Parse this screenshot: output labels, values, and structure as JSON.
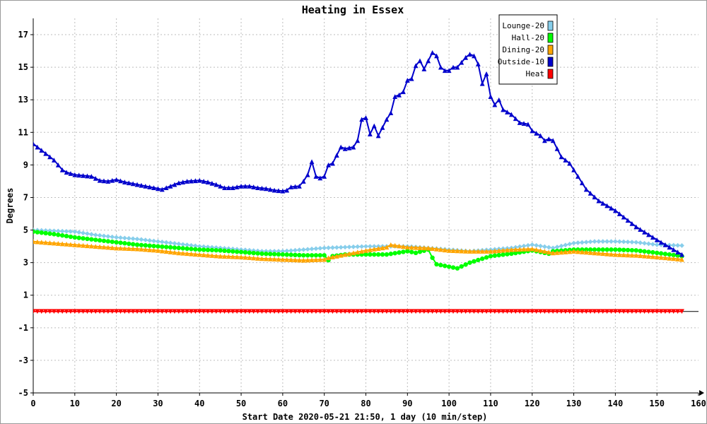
{
  "chart_data": {
    "type": "line",
    "title": "Heating in Essex",
    "xlabel": "Start Date 2020-05-21 21:50, 1 day (10 min/step)",
    "ylabel": "Degrees",
    "xlim": [
      0,
      160
    ],
    "ylim": [
      -5,
      18
    ],
    "x_ticks": [
      0,
      10,
      20,
      30,
      40,
      50,
      60,
      70,
      80,
      90,
      100,
      110,
      120,
      130,
      140,
      150,
      160
    ],
    "y_ticks": [
      -5,
      -3,
      -1,
      1,
      3,
      5,
      7,
      9,
      11,
      13,
      15,
      17
    ],
    "grid": true,
    "legend_position": "top-right",
    "series": [
      {
        "name": "Lounge-20",
        "color": "#87ceeb",
        "marker": "diamond",
        "x": [
          0,
          5,
          10,
          15,
          20,
          25,
          30,
          35,
          40,
          45,
          50,
          55,
          60,
          65,
          70,
          75,
          80,
          85,
          90,
          95,
          100,
          105,
          110,
          115,
          120,
          125,
          130,
          135,
          140,
          145,
          150,
          156
        ],
        "values": [
          5.0,
          4.95,
          4.9,
          4.7,
          4.55,
          4.45,
          4.3,
          4.15,
          4.0,
          3.9,
          3.8,
          3.7,
          3.7,
          3.8,
          3.9,
          3.95,
          4.0,
          4.0,
          4.0,
          3.9,
          3.8,
          3.7,
          3.8,
          3.9,
          4.1,
          3.9,
          4.2,
          4.3,
          4.3,
          4.25,
          4.1,
          4.05
        ]
      },
      {
        "name": "Hall-20",
        "color": "#00ff00",
        "marker": "circle",
        "x": [
          0,
          5,
          10,
          15,
          20,
          25,
          30,
          35,
          40,
          45,
          50,
          55,
          60,
          65,
          70,
          71,
          72,
          75,
          80,
          85,
          90,
          92,
          95,
          96,
          97,
          100,
          102,
          105,
          110,
          115,
          120,
          124,
          125,
          130,
          135,
          140,
          145,
          150,
          156
        ],
        "values": [
          4.9,
          4.75,
          4.55,
          4.4,
          4.25,
          4.1,
          4.0,
          3.9,
          3.8,
          3.75,
          3.65,
          3.55,
          3.5,
          3.45,
          3.45,
          3.15,
          3.4,
          3.5,
          3.5,
          3.5,
          3.7,
          3.6,
          3.8,
          3.3,
          2.9,
          2.75,
          2.65,
          3.0,
          3.4,
          3.55,
          3.75,
          3.55,
          3.7,
          3.8,
          3.8,
          3.8,
          3.75,
          3.6,
          3.4
        ]
      },
      {
        "name": "Dining-20",
        "color": "#ffa500",
        "marker": "triangle-up",
        "x": [
          0,
          5,
          10,
          15,
          20,
          25,
          30,
          35,
          40,
          45,
          50,
          55,
          60,
          65,
          70,
          71,
          75,
          80,
          85,
          86,
          90,
          95,
          100,
          105,
          110,
          115,
          120,
          125,
          130,
          135,
          140,
          145,
          150,
          156
        ],
        "values": [
          4.3,
          4.2,
          4.1,
          4.0,
          3.9,
          3.85,
          3.75,
          3.6,
          3.5,
          3.4,
          3.35,
          3.25,
          3.2,
          3.15,
          3.2,
          3.3,
          3.5,
          3.75,
          3.95,
          4.1,
          3.95,
          3.9,
          3.75,
          3.7,
          3.7,
          3.8,
          3.85,
          3.6,
          3.7,
          3.6,
          3.5,
          3.45,
          3.35,
          3.2
        ]
      },
      {
        "name": "Outside-10",
        "color": "#0000cc",
        "marker": "triangle-up",
        "x": [
          0,
          1,
          2,
          3,
          4,
          5,
          6,
          7,
          8,
          10,
          12,
          14,
          16,
          18,
          19,
          20,
          22,
          24,
          25,
          27,
          29,
          31,
          33,
          35,
          37,
          40,
          42,
          44,
          46,
          48,
          50,
          52,
          54,
          56,
          58,
          60,
          61,
          62,
          64,
          65,
          66,
          67,
          68,
          69,
          70,
          71,
          72,
          74,
          75,
          77,
          78,
          79,
          80,
          81,
          82,
          83,
          85,
          86,
          87,
          88,
          89,
          90,
          91,
          92,
          93,
          94,
          95,
          96,
          97,
          98,
          99,
          100,
          101,
          102,
          103,
          104,
          105,
          106,
          107,
          108,
          109,
          110,
          111,
          112,
          113,
          115,
          117,
          119,
          120,
          122,
          123,
          124,
          125,
          127,
          129,
          131,
          133,
          136,
          140,
          145,
          150,
          156
        ],
        "values": [
          10.3,
          10.1,
          9.9,
          9.7,
          9.5,
          9.3,
          9.0,
          8.7,
          8.55,
          8.4,
          8.35,
          8.3,
          8.05,
          8.0,
          8.05,
          8.1,
          7.95,
          7.85,
          7.8,
          7.7,
          7.6,
          7.5,
          7.7,
          7.9,
          8.0,
          8.05,
          7.95,
          7.8,
          7.6,
          7.6,
          7.7,
          7.7,
          7.6,
          7.55,
          7.45,
          7.4,
          7.45,
          7.65,
          7.7,
          8.0,
          8.4,
          9.2,
          8.3,
          8.2,
          8.3,
          9.0,
          9.1,
          10.1,
          10.0,
          10.1,
          10.5,
          11.8,
          11.9,
          10.9,
          11.4,
          10.8,
          11.8,
          12.2,
          13.2,
          13.3,
          13.5,
          14.2,
          14.3,
          15.1,
          15.4,
          14.9,
          15.4,
          15.9,
          15.7,
          15.0,
          14.8,
          14.8,
          15.0,
          15.0,
          15.3,
          15.6,
          15.8,
          15.7,
          15.2,
          14.0,
          14.6,
          13.2,
          12.7,
          13.0,
          12.4,
          12.1,
          11.6,
          11.5,
          11.1,
          10.8,
          10.5,
          10.6,
          10.5,
          9.5,
          9.1,
          8.3,
          7.5,
          6.8,
          6.2,
          5.2,
          4.4,
          3.5
        ]
      },
      {
        "name": "Heat",
        "color": "#ff0000",
        "marker": "triangle-down",
        "x": [
          0,
          156
        ],
        "values": [
          0,
          0
        ]
      }
    ]
  }
}
